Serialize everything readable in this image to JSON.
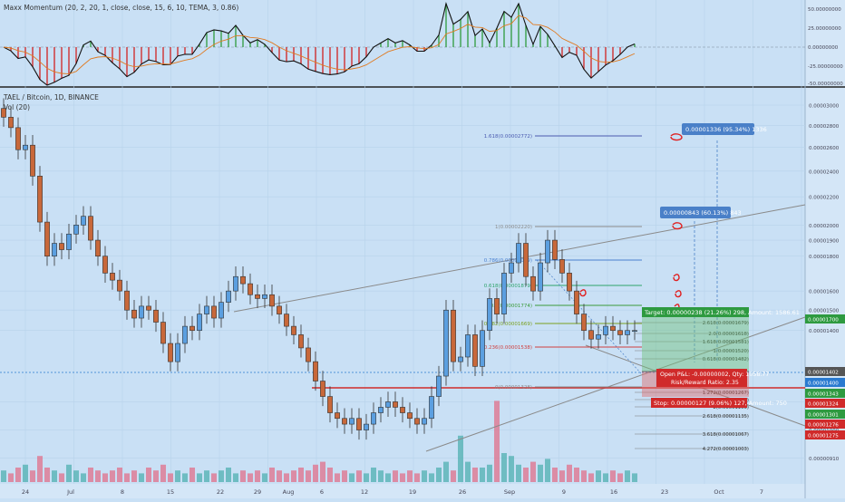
{
  "indicator": {
    "title": "Maxx Momentum (20, 2, 20, 1, close, close, 15, 6, 10, TEMA, 3, 0.86)",
    "y_ticks": [
      "50.00000000",
      "25.00000000",
      "0.00000000",
      "-25.00000000",
      "-50.00000000"
    ]
  },
  "main": {
    "symbol_title": "TAEL / Bitcoin, 1D, BINANCE",
    "volume_label": "Vol (20)",
    "y_ticks": [
      "0.00003000",
      "0.00002800",
      "0.00002600",
      "0.00002400",
      "0.00002200",
      "0.00002000",
      "0.00001900",
      "0.00001800",
      "0.00001600",
      "0.00001500",
      "0.00001400",
      "0.00001100",
      "0.00001000",
      "0.00000910"
    ],
    "x_ticks": [
      "24",
      "Jul",
      "8",
      "15",
      "22",
      "29",
      "Aug",
      "6",
      "12",
      "19",
      "26",
      "Sep",
      "9",
      "16",
      "23",
      "Oct",
      "7"
    ]
  },
  "annotations": {
    "target_box": "0.00001336 (95.34%) 1336",
    "mid_box": "0.00000843 (60.13%) 843",
    "position_target": "Target: 0.00000238 (21.26%) 298, Amount: 1586.61",
    "position_open": "Open P&L: -0.00000002, Qty: 1058.77",
    "position_rr": "Risk/Reward Ratio: 2.35",
    "position_stop": "Stop: 0.00000127 (9.06%) 127, Amount: 750"
  },
  "fib_levels": [
    {
      "label": "1.618(0.00002772)",
      "color": "#4a5ab0"
    },
    {
      "label": "1(0.00002220)",
      "color": "#8a8a8a"
    },
    {
      "label": "0.786(0.00002029)",
      "color": "#4a80d0"
    },
    {
      "label": "0.618(0.00001879)",
      "color": "#2ea36a"
    },
    {
      "label": "0.5(0.00001774)",
      "color": "#3a9a3a"
    },
    {
      "label": "0.382(0.00001669)",
      "color": "#7aa020"
    },
    {
      "label": "0.236(0.00001538)",
      "color": "#d04040"
    },
    {
      "label": "0(0.00001328)",
      "color": "#8a8a8a"
    }
  ],
  "ext_levels": [
    "2.618(0.00001679)",
    "2.0(0.00001618)",
    "1.618(0.00001581)",
    "1(0.00001520)",
    "0.618(0.00001482)",
    "1.272(0.00001267)",
    "1.618(0.00001233)",
    "2(0.00001195)",
    "2.618(0.00001135)",
    "3.618(0.00001067)",
    "4.272(0.00001003)"
  ],
  "price_tags": [
    {
      "label": "0.00001700",
      "color": "#2e9a40"
    },
    {
      "label": "0.00001402",
      "color": "#555555"
    },
    {
      "label": "0.00001400",
      "color": "#2a7ad0"
    },
    {
      "label": "0.00001343",
      "color": "#2e9a40"
    },
    {
      "label": "0.00001324",
      "color": "#d02a2a"
    },
    {
      "label": "0.00001301",
      "color": "#2e9a40"
    },
    {
      "label": "0.00001276",
      "color": "#d02a2a"
    },
    {
      "label": "0.00001275",
      "color": "#d02a2a"
    }
  ],
  "colors": {
    "up": "#5b9fe0",
    "down": "#c8683a",
    "vol_up": "#4fb0b0",
    "vol_down": "#e0708a"
  },
  "chart_data": {
    "type": "candlestick",
    "y_scale": "price (BTC)",
    "ylim": [
      8.7e-06,
      3e-05
    ],
    "series": [
      {
        "name": "TAEL / Bitcoin",
        "close": [
          2.88e-05,
          2.78e-05,
          2.58e-05,
          2.62e-05,
          2.36e-05,
          2.02e-05,
          1.8e-05,
          1.88e-05,
          1.84e-05,
          1.94e-05,
          2e-05,
          2.06e-05,
          1.9e-05,
          1.8e-05,
          1.7e-05,
          1.66e-05,
          1.6e-05,
          1.5e-05,
          1.46e-05,
          1.52e-05,
          1.5e-05,
          1.44e-05,
          1.34e-05,
          1.26e-05,
          1.34e-05,
          1.42e-05,
          1.4e-05,
          1.48e-05,
          1.52e-05,
          1.46e-05,
          1.54e-05,
          1.6e-05,
          1.68e-05,
          1.64e-05,
          1.58e-05,
          1.56e-05,
          1.58e-05,
          1.52e-05,
          1.48e-05,
          1.42e-05,
          1.38e-05,
          1.32e-05,
          1.26e-05,
          1.18e-05,
          1.12e-05,
          1.06e-05,
          1.04e-05,
          1.02e-05,
          1.04e-05,
          1e-05,
          1.02e-05,
          1.06e-05,
          1.08e-05,
          1.1e-05,
          1.08e-05,
          1.06e-05,
          1.04e-05,
          1.02e-05,
          1.04e-05,
          1.12e-05,
          1.2e-05,
          1.5e-05,
          1.26e-05,
          1.28e-05,
          1.38e-05,
          1.24e-05,
          1.4e-05,
          1.56e-05,
          1.48e-05,
          1.7e-05,
          1.76e-05,
          1.88e-05,
          1.68e-05,
          1.6e-05,
          1.76e-05,
          1.9e-05,
          1.78e-05,
          1.7e-05,
          1.6e-05,
          1.48e-05,
          1.4e-05,
          1.36e-05,
          1.38e-05,
          1.42e-05,
          1.4e-05,
          1.38e-05,
          1.4e-05,
          1.4e-05
        ]
      }
    ],
    "volume": [
      4,
      3,
      5,
      6,
      4,
      9,
      5,
      4,
      3,
      6,
      4,
      3,
      5,
      4,
      3,
      4,
      5,
      3,
      4,
      3,
      5,
      4,
      6,
      3,
      4,
      3,
      5,
      3,
      4,
      3,
      4,
      5,
      3,
      4,
      3,
      4,
      3,
      5,
      4,
      3,
      4,
      5,
      4,
      6,
      7,
      5,
      3,
      4,
      3,
      4,
      3,
      5,
      4,
      3,
      4,
      3,
      4,
      3,
      4,
      3,
      5,
      7,
      4,
      16,
      7,
      5,
      5,
      6,
      28,
      10,
      9,
      6,
      5,
      7,
      6,
      8,
      5,
      4,
      6,
      5,
      4,
      3,
      4,
      3,
      4,
      3,
      4,
      3
    ]
  }
}
